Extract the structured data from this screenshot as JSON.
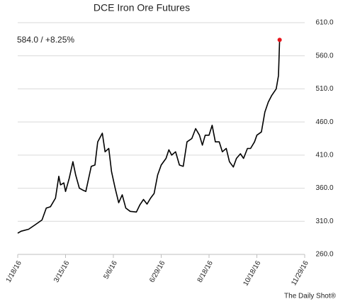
{
  "chart_data": {
    "type": "line",
    "title": "DCE Iron Ore Futures",
    "annotation": "584.0  /  +8.25%",
    "source": "The Daily Shot®",
    "x": [
      "2016-01-18",
      "2016-01-22",
      "2016-01-31",
      "2016-02-08",
      "2016-02-16",
      "2016-02-21",
      "2016-02-26",
      "2016-03-03",
      "2016-03-07",
      "2016-03-09",
      "2016-03-13",
      "2016-03-15",
      "2016-03-19",
      "2016-03-23",
      "2016-03-26",
      "2016-03-30",
      "2016-04-03",
      "2016-04-06",
      "2016-04-12",
      "2016-04-16",
      "2016-04-19",
      "2016-04-24",
      "2016-04-27",
      "2016-05-01",
      "2016-05-04",
      "2016-05-08",
      "2016-05-12",
      "2016-05-16",
      "2016-05-20",
      "2016-05-25",
      "2016-06-01",
      "2016-06-05",
      "2016-06-09",
      "2016-06-13",
      "2016-06-17",
      "2016-06-21",
      "2016-06-25",
      "2016-06-29",
      "2016-07-04",
      "2016-07-07",
      "2016-07-10",
      "2016-07-14",
      "2016-07-18",
      "2016-07-22",
      "2016-07-26",
      "2016-07-31",
      "2016-08-04",
      "2016-08-08",
      "2016-08-11",
      "2016-08-14",
      "2016-08-18",
      "2016-08-22",
      "2016-08-26",
      "2016-08-31",
      "2016-09-04",
      "2016-09-09",
      "2016-09-13",
      "2016-09-18",
      "2016-09-22",
      "2016-09-27",
      "2016-10-01",
      "2016-10-06",
      "2016-10-10",
      "2016-10-15",
      "2016-10-18",
      "2016-10-22",
      "2016-10-25",
      "2016-10-28",
      "2016-10-31",
      "2016-11-04",
      "2016-11-06",
      "2016-11-07"
    ],
    "series": [
      {
        "name": "DCE Iron Ore Futures",
        "color": "#000000",
        "marker_color": "#e8141b",
        "values": [
          292,
          295,
          298,
          305,
          312,
          330,
          332,
          345,
          378,
          365,
          368,
          355,
          375,
          400,
          380,
          360,
          357,
          355,
          393,
          395,
          430,
          443,
          415,
          420,
          385,
          360,
          338,
          350,
          330,
          325,
          324,
          335,
          343,
          336,
          345,
          352,
          380,
          395,
          405,
          418,
          410,
          415,
          395,
          393,
          430,
          435,
          450,
          440,
          425,
          440,
          440,
          455,
          430,
          430,
          415,
          420,
          400,
          392,
          405,
          412,
          405,
          420,
          420,
          430,
          440,
          445,
          475,
          490,
          500,
          510,
          530,
          584
        ]
      }
    ],
    "xticks": [
      {
        "value": "2016-01-18",
        "label": "1/18/16"
      },
      {
        "value": "2016-03-15",
        "label": "3/15/16"
      },
      {
        "value": "2016-05-06",
        "label": "5/6/16"
      },
      {
        "value": "2016-06-29",
        "label": "6/29/16"
      },
      {
        "value": "2016-08-18",
        "label": "8/18/16"
      },
      {
        "value": "2016-10-18",
        "label": "10/18/16"
      },
      {
        "value": "2016-11-29",
        "label": "11/29/16"
      }
    ],
    "ylim": [
      260,
      610
    ],
    "yticks": [
      {
        "value": 260,
        "label": "260.0"
      },
      {
        "value": 310,
        "label": "310.0"
      },
      {
        "value": 360,
        "label": "360.0"
      },
      {
        "value": 410,
        "label": "410.0"
      },
      {
        "value": 460,
        "label": "460.0"
      },
      {
        "value": 510,
        "label": "510.0"
      },
      {
        "value": 560,
        "label": "560.0"
      },
      {
        "value": 610,
        "label": "610.0"
      }
    ],
    "grid": true
  }
}
